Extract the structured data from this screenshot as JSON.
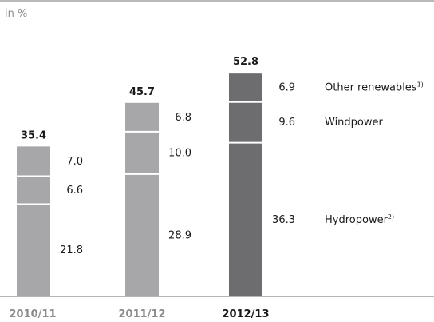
{
  "unit_label": "in %",
  "colors": {
    "past_bars": "#a7a7a9",
    "highlight_bar": "#6d6c6f",
    "separator": "#ffffff",
    "axis": "#b5b5b5"
  },
  "chart_data": {
    "type": "bar",
    "stacked": true,
    "categories": [
      "2010/11",
      "2011/12",
      "2012/13"
    ],
    "highlight_category": "2012/13",
    "series": [
      {
        "name": "Hydropower",
        "footnote": "2)",
        "values": [
          21.8,
          28.9,
          36.3
        ]
      },
      {
        "name": "Windpower",
        "footnote": "",
        "values": [
          6.6,
          10.0,
          9.6
        ]
      },
      {
        "name": "Other renewables",
        "footnote": "1)",
        "values": [
          7.0,
          6.8,
          6.9
        ]
      }
    ],
    "totals": [
      35.4,
      45.7,
      52.8
    ],
    "value_labels": [
      [
        "21.8",
        "6.6",
        "7.0"
      ],
      [
        "28.9",
        "10.0",
        "6.8"
      ],
      [
        "36.3",
        "9.6",
        "6.9"
      ]
    ],
    "total_labels": [
      "35.4",
      "45.7",
      "52.8"
    ],
    "legend_position": "right",
    "grid": false
  }
}
